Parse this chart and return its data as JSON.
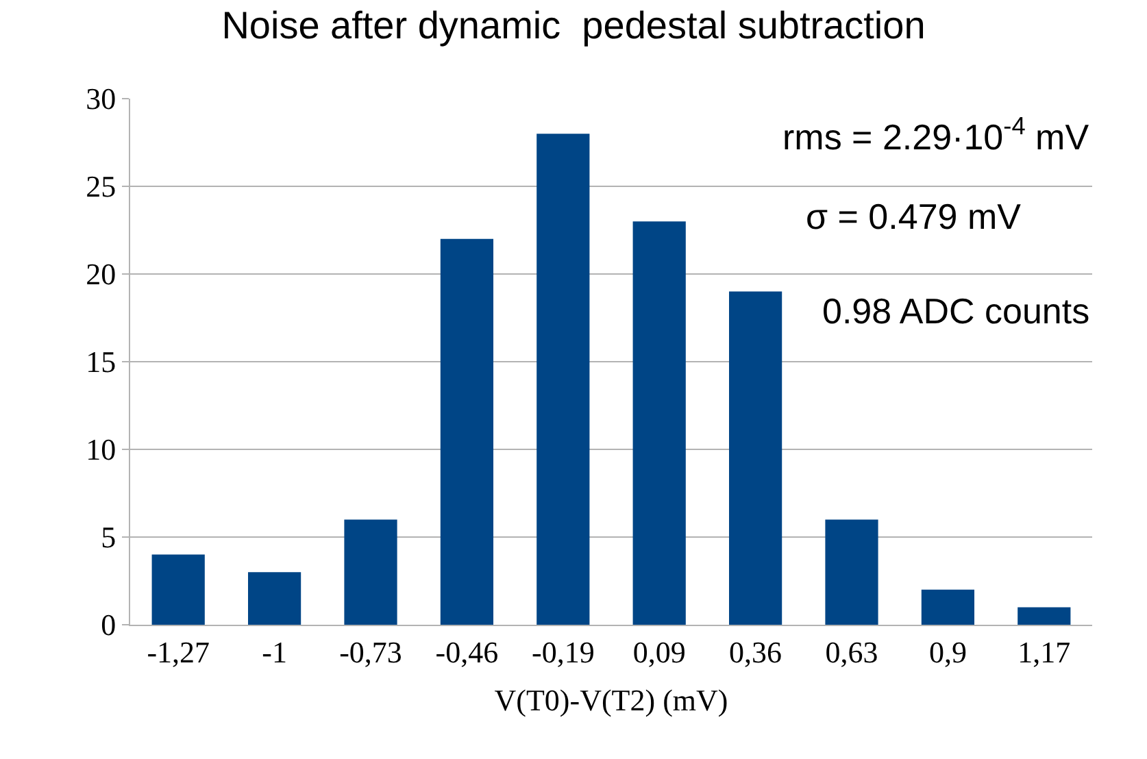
{
  "chart_data": {
    "type": "bar",
    "title": "Noise after dynamic  pedestal subtraction",
    "xlabel": "V(T0)-V(T2) (mV)",
    "categories": [
      "-1,27",
      "-1",
      "-0,73",
      "-0,46",
      "-0,19",
      "0,09",
      "0,36",
      "0,63",
      "0,9",
      "1,17"
    ],
    "values": [
      4,
      3,
      6,
      22,
      28,
      23,
      19,
      6,
      2,
      1
    ],
    "color": "#004586",
    "ylim": [
      0,
      30
    ],
    "yticks": [
      0,
      5,
      10,
      15,
      20,
      25,
      30
    ],
    "grid": "y",
    "legend": false,
    "annotations": [
      "rms = 2.29·10$^{-4}$ mV",
      "σ = 0.479 mV",
      "0.98 ADC counts"
    ]
  }
}
